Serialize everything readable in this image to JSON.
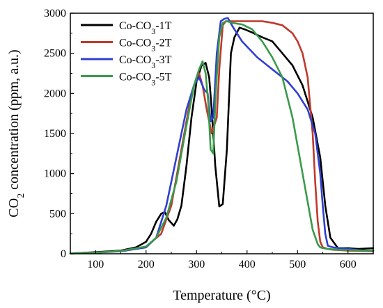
{
  "chart_data": {
    "type": "line",
    "xlabel": "Temperature (°C)",
    "ylabel_parts": {
      "pre": "CO",
      "sub": "2",
      "post": " concentration (ppm, a.u.)"
    },
    "xlim": [
      50,
      650
    ],
    "ylim": [
      0,
      3000
    ],
    "xticks": [
      100,
      200,
      300,
      400,
      500,
      600
    ],
    "yticks": [
      0,
      500,
      1000,
      1500,
      2000,
      2500,
      3000
    ],
    "grid": false,
    "legend_position": "top-left",
    "series": [
      {
        "name": "Co-CO3-1T",
        "label_parts": {
          "pre": "Co-CO",
          "sub": "3",
          "post": "-1T"
        },
        "color": "#000000",
        "x": [
          50,
          100,
          150,
          180,
          200,
          210,
          220,
          230,
          237,
          245,
          255,
          262,
          270,
          280,
          290,
          300,
          310,
          318,
          325,
          330,
          337,
          345,
          352,
          360,
          368,
          375,
          385,
          395,
          410,
          430,
          450,
          470,
          490,
          510,
          530,
          545,
          555,
          565,
          580,
          600,
          620,
          650
        ],
        "y": [
          5,
          20,
          40,
          80,
          150,
          250,
          400,
          500,
          520,
          420,
          350,
          430,
          600,
          1100,
          1700,
          2150,
          2350,
          2380,
          2200,
          1800,
          1100,
          590,
          620,
          1300,
          2500,
          2700,
          2820,
          2800,
          2760,
          2700,
          2650,
          2500,
          2350,
          2100,
          1700,
          1200,
          600,
          200,
          70,
          70,
          60,
          70
        ]
      },
      {
        "name": "Co-CO3-2T",
        "label_parts": {
          "pre": "Co-CO",
          "sub": "3",
          "post": "-2T"
        },
        "color": "#c0392b",
        "x": [
          50,
          100,
          150,
          200,
          230,
          250,
          270,
          290,
          300,
          305,
          312,
          320,
          330,
          340,
          345,
          352,
          358,
          365,
          380,
          400,
          430,
          450,
          470,
          490,
          500,
          510,
          520,
          530,
          535,
          540,
          545,
          550,
          555,
          560,
          570,
          600,
          630,
          650
        ],
        "y": [
          5,
          15,
          35,
          90,
          250,
          600,
          1300,
          2000,
          2200,
          2250,
          2100,
          1800,
          1500,
          1700,
          2300,
          2850,
          2900,
          2900,
          2900,
          2900,
          2900,
          2880,
          2850,
          2750,
          2650,
          2500,
          2200,
          1500,
          900,
          400,
          150,
          80,
          70,
          60,
          50,
          40,
          35,
          30
        ]
      },
      {
        "name": "Co-CO3-3T",
        "label_parts": {
          "pre": "Co-CO",
          "sub": "3",
          "post": "-3T"
        },
        "color": "#2f3fd1",
        "x": [
          50,
          100,
          150,
          200,
          220,
          240,
          260,
          280,
          295,
          305,
          315,
          322,
          328,
          333,
          340,
          348,
          355,
          362,
          370,
          390,
          420,
          450,
          480,
          500,
          520,
          535,
          545,
          550,
          555,
          560,
          570,
          600,
          630,
          650
        ],
        "y": [
          5,
          15,
          30,
          80,
          200,
          600,
          1200,
          1800,
          2100,
          2200,
          2050,
          2000,
          1650,
          1700,
          2500,
          2900,
          2930,
          2940,
          2850,
          2650,
          2450,
          2300,
          2150,
          2000,
          1800,
          1500,
          1000,
          600,
          250,
          100,
          80,
          60,
          40,
          40
        ]
      },
      {
        "name": "Co-CO3-5T",
        "label_parts": {
          "pre": "Co-CO",
          "sub": "3",
          "post": "-5T"
        },
        "color": "#3a9a4a",
        "x": [
          50,
          100,
          150,
          200,
          220,
          240,
          260,
          280,
          295,
          305,
          312,
          318,
          323,
          328,
          333,
          338,
          345,
          352,
          360,
          370,
          390,
          410,
          430,
          450,
          470,
          490,
          510,
          530,
          540,
          545,
          550,
          560,
          580,
          600,
          630,
          650
        ],
        "y": [
          5,
          15,
          35,
          90,
          200,
          450,
          900,
          1600,
          2100,
          2300,
          2400,
          2250,
          1900,
          1300,
          1250,
          2000,
          2700,
          2880,
          2900,
          2880,
          2860,
          2800,
          2650,
          2450,
          2200,
          1700,
          1000,
          300,
          120,
          80,
          70,
          60,
          50,
          45,
          40,
          40
        ]
      }
    ]
  }
}
